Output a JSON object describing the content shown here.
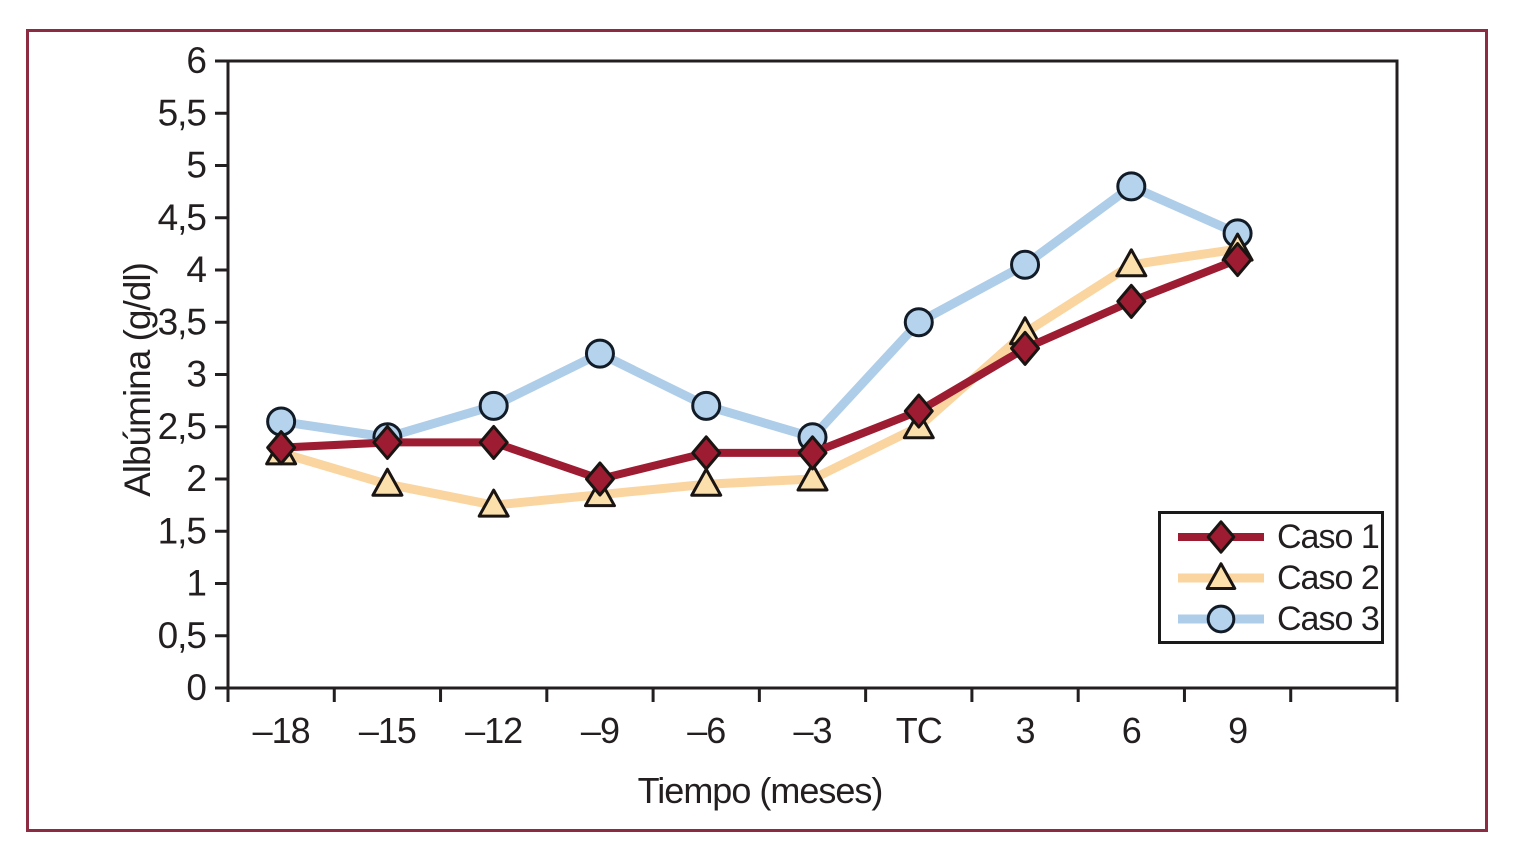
{
  "figure": {
    "border_color": "#8C2B42",
    "background_color": "#FFFFFF"
  },
  "chart_data": {
    "type": "line",
    "title": "",
    "xlabel": "Tiempo (meses)",
    "ylabel": "Albúmina (g/dl)",
    "categories": [
      "–18",
      "–15",
      "–12",
      "–9",
      "–6",
      "–3",
      "TC",
      "3",
      "6",
      "9"
    ],
    "y_ticks": [
      "6",
      "5,5",
      "5",
      "4,5",
      "4",
      "3,5",
      "3",
      "2,5",
      "2",
      "1,5",
      "1",
      "0,5",
      "0"
    ],
    "ylim": [
      0,
      6
    ],
    "y_tick_step": 0.5,
    "decimal_style": "comma",
    "grid": false,
    "legend_position": "inside-bottom-right",
    "empty_trailing_intervals": 1,
    "series": [
      {
        "name": "Caso 1",
        "marker": "diamond",
        "line_color": "#9E1C31",
        "marker_fill": "#9E1C31",
        "marker_stroke": "#1A1512",
        "values": [
          2.3,
          2.35,
          2.35,
          2.0,
          2.25,
          2.25,
          2.65,
          3.25,
          3.7,
          4.1
        ]
      },
      {
        "name": "Caso 2",
        "marker": "triangle",
        "line_color": "#FAD5A0",
        "marker_fill": "#FCE0AC",
        "marker_stroke": "#1A1512",
        "values": [
          2.25,
          1.95,
          1.75,
          1.85,
          1.95,
          2.0,
          2.5,
          3.4,
          4.05,
          4.2
        ]
      },
      {
        "name": "Caso 3",
        "marker": "circle",
        "line_color": "#AECDE9",
        "marker_fill": "#B5D3ED",
        "marker_stroke": "#111C28",
        "values": [
          2.55,
          2.4,
          2.7,
          3.2,
          2.7,
          2.4,
          3.5,
          4.05,
          4.8,
          4.35
        ]
      }
    ],
    "colors": {
      "axis_frame": "#231F20",
      "tick_text": "#231F20",
      "legend_border": "#1A1A1A"
    }
  }
}
